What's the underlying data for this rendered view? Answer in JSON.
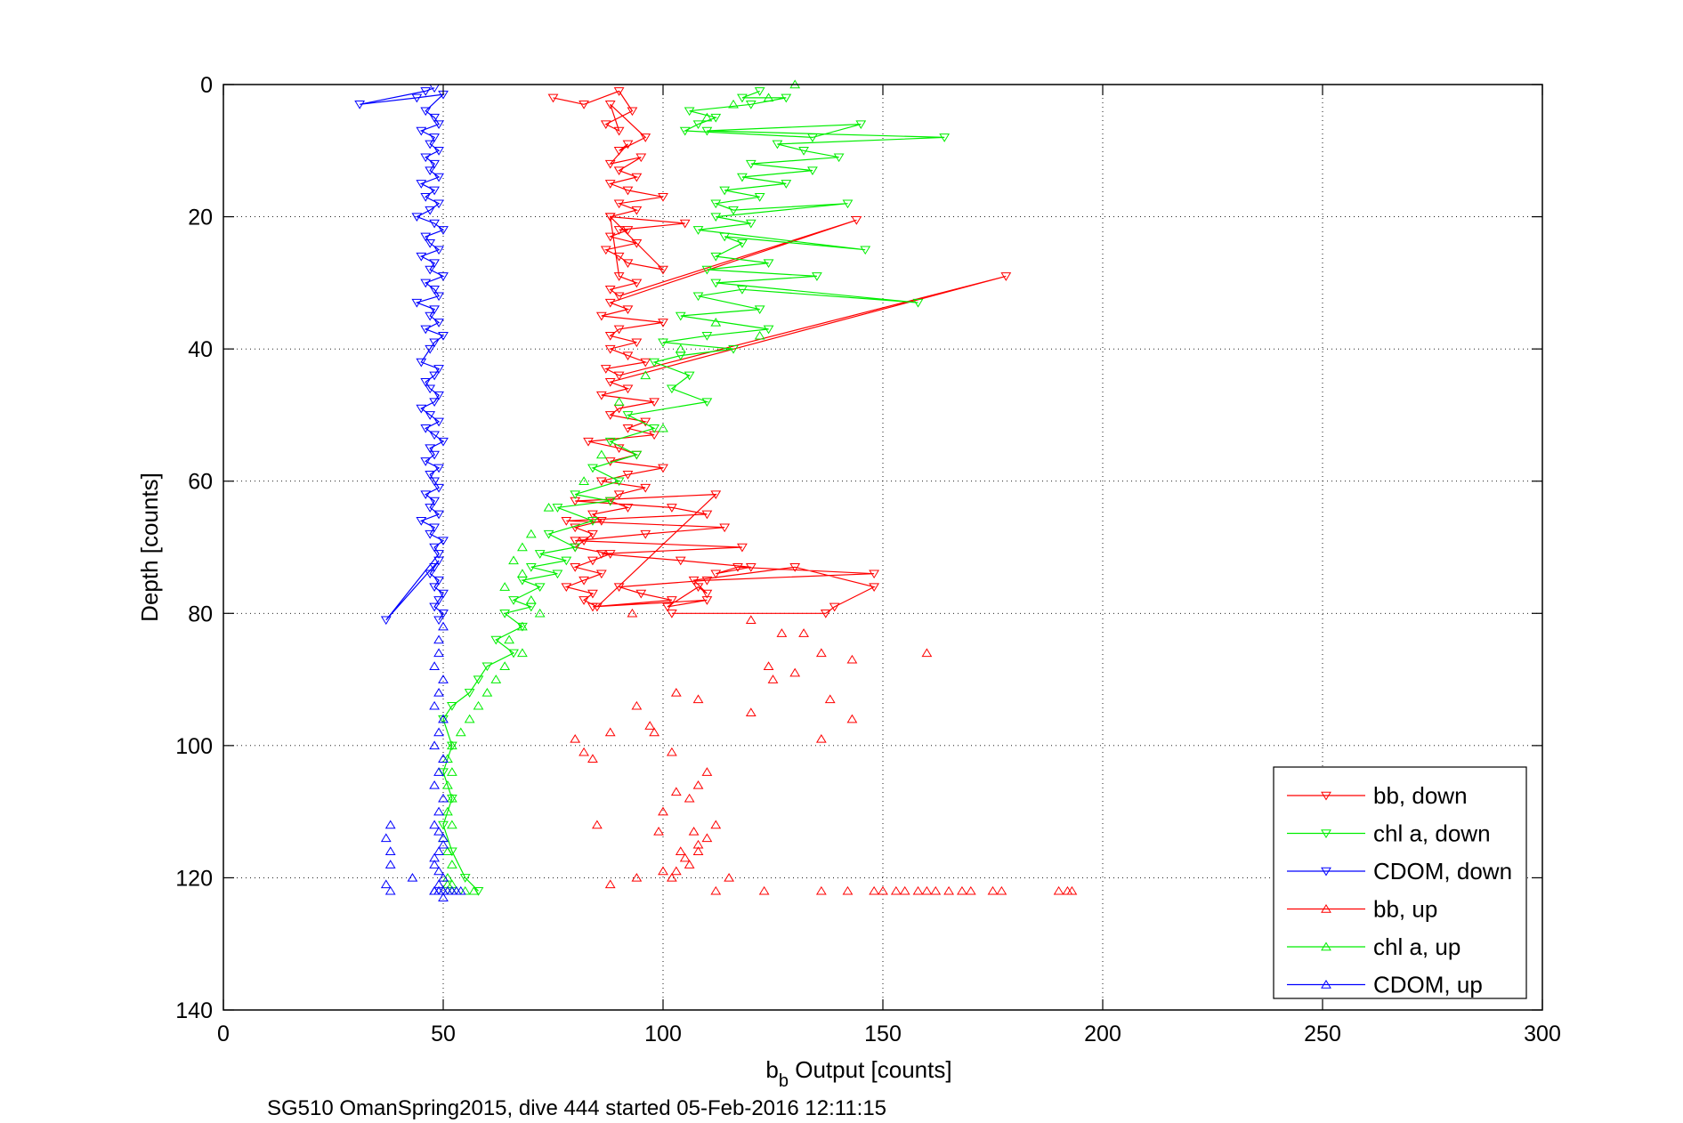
{
  "chart_data": {
    "type": "scatter",
    "xlabel": "b",
    "xlabel_sub": "b",
    "xlabel_rest": " Output [counts]",
    "ylabel": "Depth [counts]",
    "footer": "SG510 OmanSpring2015, dive 444 started 05-Feb-2016 12:11:15",
    "xlim": [
      0,
      300
    ],
    "ylim": [
      0,
      140
    ],
    "y_reversed": true,
    "grid": true,
    "legend_position": "bottom-right",
    "xticks": [
      "0",
      "50",
      "100",
      "150",
      "200",
      "250",
      "300"
    ],
    "yticks": [
      "0",
      "20",
      "40",
      "60",
      "80",
      "100",
      "120",
      "140"
    ],
    "series": [
      {
        "name": "bb, down",
        "color": "#ff0000",
        "marker": "triangle-down",
        "line": true,
        "x": [
          75,
          82,
          90,
          93,
          87,
          90,
          88,
          96,
          90,
          92,
          88,
          95,
          90,
          94,
          88,
          92,
          100,
          90,
          94,
          88,
          105,
          90,
          92,
          88,
          94,
          87,
          90,
          92,
          100,
          88,
          90,
          94,
          88,
          90,
          144,
          88,
          92,
          86,
          100,
          90,
          88,
          94,
          88,
          92,
          96,
          87,
          90,
          178,
          88,
          92,
          86,
          98,
          90,
          88,
          96,
          92,
          98,
          83,
          90,
          94,
          88,
          100,
          92,
          86,
          96,
          90,
          88,
          92,
          84,
          86,
          80,
          84,
          82,
          80,
          88,
          84,
          80,
          86,
          82,
          78,
          84,
          82,
          85,
          112,
          80,
          102,
          110,
          78,
          114,
          96,
          80,
          118,
          86,
          104,
          120,
          112,
          117,
          148,
          110,
          90,
          95,
          102,
          84,
          110,
          101,
          108,
          110,
          107,
          130,
          148,
          139,
          137,
          102
        ],
        "y": [
          2,
          3,
          1,
          4,
          6,
          7,
          3,
          8,
          10,
          9,
          12,
          11,
          13,
          14,
          15,
          16,
          17,
          18,
          19,
          20,
          21,
          22,
          22,
          23,
          24,
          25,
          26,
          27,
          28,
          20,
          29,
          30,
          31,
          32,
          20.5,
          33,
          34,
          35,
          36,
          37,
          38,
          39,
          40,
          41,
          42,
          43,
          44,
          29,
          45,
          46,
          47,
          48,
          49,
          50,
          51,
          52,
          53,
          54,
          55,
          56,
          57,
          58,
          59,
          60,
          61,
          62,
          63,
          64,
          65,
          66,
          67,
          68,
          69,
          70,
          71,
          72,
          73,
          74,
          75,
          76,
          77,
          78,
          79,
          62,
          63,
          64,
          65,
          66,
          67,
          68,
          69,
          70,
          71,
          72,
          73,
          74,
          73,
          74,
          75,
          76,
          77,
          78,
          79,
          78,
          79,
          76,
          77,
          75,
          73,
          76,
          79,
          80,
          80
        ]
      },
      {
        "name": "chl a, down",
        "color": "#00ee00",
        "marker": "triangle-down",
        "line": true,
        "x": [
          122,
          118,
          128,
          120,
          106,
          112,
          108,
          105,
          134,
          145,
          110,
          164,
          126,
          132,
          140,
          120,
          134,
          118,
          128,
          114,
          122,
          112,
          116,
          142,
          112,
          120,
          108,
          146,
          114,
          118,
          112,
          124,
          110,
          135,
          112,
          158,
          118,
          108,
          122,
          104,
          124,
          110,
          100,
          116,
          104,
          98,
          106,
          102,
          110,
          92,
          98,
          88,
          94,
          84,
          90,
          80,
          88,
          76,
          84,
          74,
          80,
          72,
          78,
          70,
          76,
          68,
          72,
          66,
          70,
          64,
          68,
          62,
          66,
          60,
          58,
          56,
          52,
          50,
          52,
          50,
          52,
          50,
          52,
          55,
          58
        ],
        "y": [
          1,
          2,
          2,
          3,
          4,
          5,
          6,
          7,
          8,
          6,
          7,
          8,
          9,
          10,
          11,
          12,
          13,
          14,
          15,
          16,
          17,
          18,
          19,
          18,
          20,
          21,
          22,
          25,
          23,
          24,
          26,
          27,
          28,
          29,
          30,
          33,
          31,
          32,
          34,
          35,
          37,
          38,
          39,
          40,
          41,
          42,
          44,
          46,
          48,
          50,
          52,
          54,
          56,
          58,
          60,
          62,
          63,
          64,
          66,
          68,
          70,
          71,
          72,
          73,
          74,
          75,
          76,
          78,
          79,
          80,
          82,
          84,
          86,
          88,
          90,
          92,
          94,
          96,
          100,
          104,
          108,
          112,
          116,
          120,
          122
        ]
      },
      {
        "name": "CDOM, down",
        "color": "#0000ff",
        "marker": "triangle-down",
        "line": true,
        "x": [
          48,
          46,
          31,
          44,
          50,
          46,
          48,
          49,
          45,
          48,
          47,
          49,
          46,
          48,
          47,
          49,
          45,
          48,
          46,
          49,
          47,
          44,
          48,
          50,
          46,
          47,
          49,
          45,
          48,
          47,
          50,
          46,
          48,
          49,
          44,
          48,
          47,
          49,
          46,
          50,
          48,
          47,
          45,
          49,
          48,
          46,
          47,
          49,
          48,
          45,
          47,
          49,
          46,
          48,
          50,
          47,
          48,
          46,
          49,
          47,
          48,
          49,
          46,
          48,
          47,
          49,
          45,
          48,
          47,
          50,
          48,
          49,
          37,
          49,
          48,
          47,
          49,
          48,
          50,
          49,
          48,
          50,
          49
        ],
        "y": [
          0.5,
          1,
          3,
          2,
          1.5,
          4,
          5,
          6,
          7,
          8,
          9,
          10,
          11,
          12,
          13,
          14,
          15,
          16,
          17,
          18,
          19,
          20,
          21,
          22,
          23,
          24,
          25,
          26,
          27,
          28,
          29,
          30,
          31,
          32,
          33,
          34,
          35,
          36,
          37,
          38,
          39,
          40,
          42,
          43,
          44,
          45,
          46,
          47,
          48,
          49,
          50,
          51,
          52,
          53,
          54,
          55,
          56,
          57,
          58,
          59,
          60,
          61,
          62,
          63,
          64,
          65,
          66,
          67,
          68,
          69,
          70,
          71,
          81,
          72,
          73,
          74,
          75,
          76,
          77,
          78,
          79,
          80,
          81
        ]
      },
      {
        "name": "bb, up",
        "color": "#ff0000",
        "marker": "triangle-up",
        "line": false,
        "x": [
          93,
          120,
          160,
          127,
          132,
          143,
          136,
          124,
          94,
          125,
          130,
          103,
          108,
          138,
          143,
          120,
          98,
          80,
          88,
          97,
          136,
          82,
          84,
          102,
          110,
          108,
          106,
          103,
          100,
          85,
          112,
          99,
          110,
          104,
          105,
          106,
          100,
          102,
          108,
          107,
          108,
          115,
          88,
          94,
          103,
          112,
          123,
          136,
          142,
          148,
          150,
          153,
          155,
          158,
          160,
          162,
          165,
          168,
          170,
          175,
          177,
          190,
          193,
          192
        ],
        "y": [
          80,
          81,
          86,
          83,
          83,
          87,
          86,
          88,
          94,
          90,
          89,
          92,
          93,
          93,
          96,
          95,
          98,
          99,
          98,
          97,
          99,
          101,
          102,
          101,
          104,
          106,
          108,
          107,
          110,
          112,
          112,
          113,
          114,
          116,
          117,
          118,
          119,
          120,
          115,
          113,
          116,
          120,
          121,
          120,
          119,
          122,
          122,
          122,
          122,
          122,
          122,
          122,
          122,
          122,
          122,
          122,
          122,
          122,
          122,
          122,
          122,
          122,
          122,
          122
        ]
      },
      {
        "name": "chl a, up",
        "color": "#00ee00",
        "marker": "triangle-up",
        "line": false,
        "x": [
          130,
          124,
          116,
          110,
          122,
          112,
          104,
          96,
          90,
          100,
          86,
          82,
          74,
          70,
          68,
          66,
          68,
          64,
          70,
          72,
          68,
          65,
          68,
          64,
          62,
          60,
          58,
          56,
          54,
          52,
          51,
          52,
          51,
          52,
          51,
          52,
          50,
          51,
          52,
          51,
          52,
          50,
          51,
          52,
          51,
          52,
          53,
          55,
          57
        ],
        "y": [
          0,
          2,
          3,
          5,
          38,
          36,
          40,
          44,
          48,
          52,
          56,
          60,
          64,
          68,
          70,
          72,
          74,
          76,
          78,
          80,
          82,
          84,
          86,
          88,
          90,
          92,
          94,
          96,
          98,
          100,
          102,
          104,
          106,
          108,
          110,
          112,
          114,
          116,
          118,
          120,
          121,
          122,
          122,
          122,
          121,
          122,
          122,
          122,
          122
        ]
      },
      {
        "name": "CDOM, up",
        "color": "#0000ff",
        "marker": "triangle-up",
        "line": false,
        "x": [
          50,
          49,
          49,
          48,
          50,
          49,
          48,
          50,
          49,
          48,
          50,
          49,
          48,
          50,
          49,
          48,
          50,
          49,
          48,
          50,
          49,
          48,
          50,
          49,
          48,
          50,
          49,
          38,
          37,
          38,
          38,
          37,
          43,
          38,
          48,
          50,
          49,
          51,
          52,
          53,
          54,
          50,
          48,
          49
        ],
        "y": [
          82,
          84,
          86,
          88,
          90,
          92,
          94,
          96,
          98,
          100,
          102,
          104,
          106,
          108,
          110,
          112,
          114,
          116,
          118,
          120,
          121,
          122,
          123,
          119,
          117,
          115,
          113,
          112,
          114,
          116,
          118,
          121,
          120,
          122,
          122,
          122,
          122,
          122,
          122,
          122,
          122,
          122,
          122,
          122
        ]
      }
    ]
  }
}
